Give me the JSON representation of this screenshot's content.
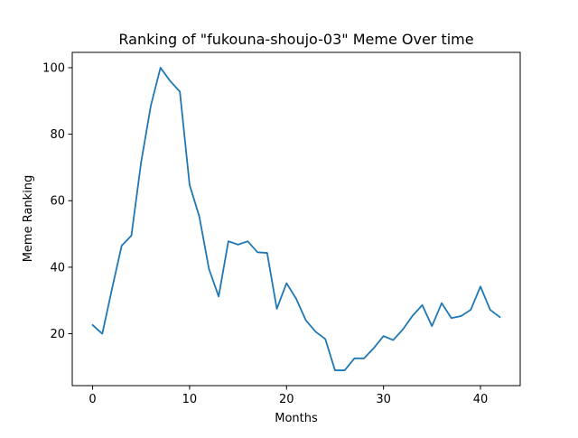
{
  "chart_data": {
    "type": "line",
    "title": "Ranking of \"fukouna-shoujo-03\" Meme Over time",
    "xlabel": "Months",
    "ylabel": "Meme Ranking",
    "xlim": [
      -2.1,
      44.1
    ],
    "ylim": [
      4.4,
      104.6
    ],
    "xticks": [
      0,
      10,
      20,
      30,
      40
    ],
    "yticks": [
      20,
      40,
      60,
      80,
      100
    ],
    "grid": false,
    "legend": "none",
    "series": [
      {
        "color": "#1f77b4",
        "x": [
          0,
          1,
          2,
          3,
          4,
          5,
          6,
          7,
          8,
          9,
          10,
          11,
          12,
          13,
          14,
          15,
          16,
          17,
          18,
          19,
          20,
          21,
          22,
          23,
          24,
          25,
          26,
          27,
          28,
          29,
          30,
          31,
          32,
          33,
          34,
          35,
          36,
          37,
          38,
          39,
          40,
          41,
          42
        ],
        "values": [
          22.6,
          20.0,
          33.5,
          46.5,
          49.5,
          71.5,
          88.5,
          100.0,
          96.0,
          92.8,
          64.8,
          55.3,
          39.5,
          31.2,
          47.8,
          46.8,
          47.8,
          44.5,
          44.3,
          27.5,
          35.2,
          30.5,
          24.0,
          20.6,
          18.4,
          9.0,
          9.0,
          12.6,
          12.6,
          15.7,
          19.3,
          18.1,
          21.3,
          25.4,
          28.6,
          22.3,
          29.2,
          24.7,
          25.3,
          27.2,
          34.2,
          27.2,
          25.0
        ]
      }
    ]
  }
}
